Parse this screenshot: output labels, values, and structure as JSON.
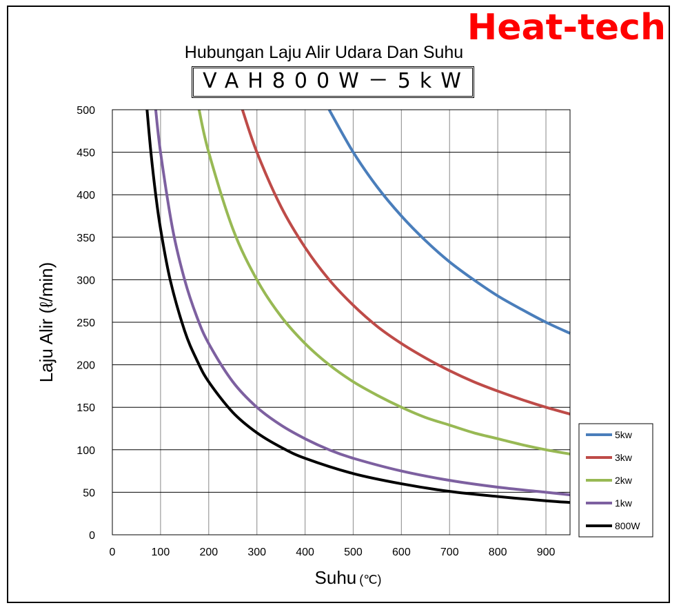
{
  "brand": "Heat-tech",
  "chart_data": {
    "type": "line",
    "title": "Hubungan Laju Alir Udara Dan Suhu",
    "subtitle": "VAH800W－5kW",
    "xlabel": "Suhu",
    "xlabel_unit": "(℃)",
    "ylabel": "Laju Alir (ℓ/min)",
    "xlim": [
      0,
      950
    ],
    "ylim": [
      0,
      500
    ],
    "xticks": [
      0,
      100,
      200,
      300,
      400,
      500,
      600,
      700,
      800,
      900
    ],
    "yticks": [
      0,
      50,
      100,
      150,
      200,
      250,
      300,
      350,
      400,
      450,
      500
    ],
    "grid": true,
    "legend_position": "bottom-right",
    "series": [
      {
        "name": "5kw",
        "color": "#4a7ebb",
        "x": [
          450,
          500,
          550,
          600,
          650,
          700,
          750,
          800,
          850,
          900,
          950
        ],
        "y": [
          500,
          450,
          409,
          375,
          346,
          321,
          300,
          281,
          265,
          250,
          237
        ]
      },
      {
        "name": "3kw",
        "color": "#be4b48",
        "x": [
          270,
          300,
          350,
          400,
          450,
          500,
          550,
          600,
          650,
          700,
          750,
          800,
          850,
          900,
          950
        ],
        "y": [
          500,
          450,
          386,
          338,
          300,
          270,
          245,
          225,
          208,
          193,
          180,
          169,
          159,
          150,
          142
        ]
      },
      {
        "name": "2kw",
        "color": "#98b954",
        "x": [
          180,
          200,
          250,
          300,
          350,
          400,
          450,
          500,
          550,
          600,
          650,
          700,
          750,
          800,
          850,
          900,
          950
        ],
        "y": [
          500,
          450,
          360,
          300,
          257,
          225,
          200,
          180,
          164,
          150,
          138,
          129,
          120,
          113,
          106,
          100,
          95
        ]
      },
      {
        "name": "1kw",
        "color": "#7d60a0",
        "x": [
          90,
          100,
          125,
          150,
          175,
          200,
          250,
          300,
          350,
          400,
          450,
          500,
          600,
          700,
          800,
          900,
          950
        ],
        "y": [
          500,
          450,
          360,
          300,
          257,
          225,
          180,
          150,
          129,
          113,
          100,
          90,
          75,
          64,
          56,
          50,
          47
        ]
      },
      {
        "name": "800W",
        "color": "#000000",
        "x": [
          72,
          80,
          90,
          100,
          120,
          150,
          175,
          200,
          250,
          300,
          350,
          400,
          500,
          600,
          700,
          800,
          900,
          950
        ],
        "y": [
          500,
          450,
          400,
          360,
          300,
          240,
          206,
          180,
          144,
          120,
          103,
          90,
          72,
          60,
          51,
          45,
          40,
          38
        ]
      }
    ]
  }
}
